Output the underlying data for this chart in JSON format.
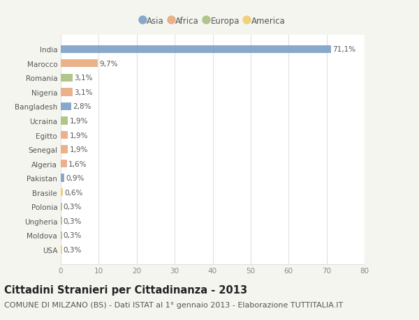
{
  "countries": [
    "India",
    "Marocco",
    "Romania",
    "Nigeria",
    "Bangladesh",
    "Ucraina",
    "Egitto",
    "Senegal",
    "Algeria",
    "Pakistan",
    "Brasile",
    "Polonia",
    "Ungheria",
    "Moldova",
    "USA"
  ],
  "values": [
    71.1,
    9.7,
    3.1,
    3.1,
    2.8,
    1.9,
    1.9,
    1.9,
    1.6,
    0.9,
    0.6,
    0.3,
    0.3,
    0.3,
    0.3
  ],
  "labels": [
    "71,1%",
    "9,7%",
    "3,1%",
    "3,1%",
    "2,8%",
    "1,9%",
    "1,9%",
    "1,9%",
    "1,6%",
    "0,9%",
    "0,6%",
    "0,3%",
    "0,3%",
    "0,3%",
    "0,3%"
  ],
  "continents": [
    "Asia",
    "Africa",
    "Europa",
    "Africa",
    "Asia",
    "Europa",
    "Africa",
    "Africa",
    "Africa",
    "Asia",
    "America",
    "Europa",
    "Europa",
    "Europa",
    "America"
  ],
  "colors": {
    "Asia": "#7b9fc7",
    "Africa": "#e8a97e",
    "Europa": "#a8c07e",
    "America": "#f0cc70"
  },
  "legend_order": [
    "Asia",
    "Africa",
    "Europa",
    "America"
  ],
  "title": "Cittadini Stranieri per Cittadinanza - 2013",
  "subtitle": "COMUNE DI MILZANO (BS) - Dati ISTAT al 1° gennaio 2013 - Elaborazione TUTTITALIA.IT",
  "xlim": [
    0,
    80
  ],
  "xticks": [
    0,
    10,
    20,
    30,
    40,
    50,
    60,
    70,
    80
  ],
  "background_color": "#f5f5f0",
  "plot_background": "#ffffff",
  "grid_color": "#e0e0e0",
  "title_fontsize": 10.5,
  "subtitle_fontsize": 8,
  "label_fontsize": 7.5,
  "tick_fontsize": 7.5,
  "legend_fontsize": 8.5
}
